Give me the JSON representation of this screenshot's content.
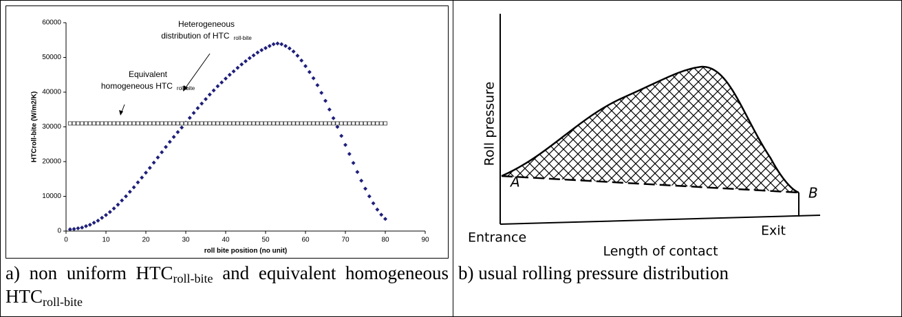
{
  "chart_data": {
    "type": "scatter",
    "y_label": "HTCroll-bite (W/m2/K)",
    "x_label": "roll bite position (no unit)",
    "annotations": [
      {
        "lines": [
          "Heterogeneous",
          "distribution of HTC"
        ],
        "sub": "roll-bite"
      },
      {
        "lines": [
          "Equivalent",
          "homogeneous HTC"
        ],
        "sub": "roll-bite"
      }
    ],
    "x": [
      1,
      2,
      3,
      4,
      5,
      6,
      7,
      8,
      9,
      10,
      11,
      12,
      13,
      14,
      15,
      16,
      17,
      18,
      19,
      20,
      21,
      22,
      23,
      24,
      25,
      26,
      27,
      28,
      29,
      30,
      31,
      32,
      33,
      34,
      35,
      36,
      37,
      38,
      39,
      40,
      41,
      42,
      43,
      44,
      45,
      46,
      47,
      48,
      49,
      50,
      51,
      52,
      53,
      54,
      55,
      56,
      57,
      58,
      59,
      60,
      61,
      62,
      63,
      64,
      65,
      66,
      67,
      68,
      69,
      70,
      71,
      72,
      73,
      74,
      75,
      76,
      77,
      78,
      79,
      80
    ],
    "series": [
      {
        "color": "#1f1f7a",
        "marker": "diamond",
        "values": [
          500,
          600,
          800,
          1000,
          1400,
          1800,
          2400,
          3000,
          3800,
          4600,
          5500,
          6500,
          7600,
          8800,
          10000,
          11300,
          12600,
          14000,
          15400,
          16800,
          18200,
          19700,
          21200,
          22700,
          24200,
          25700,
          27100,
          28500,
          29800,
          31200,
          32600,
          34000,
          35400,
          36700,
          38000,
          39300,
          40500,
          41700,
          42800,
          43900,
          45000,
          46000,
          47000,
          48000,
          48900,
          49800,
          50600,
          51400,
          52100,
          52700,
          53300,
          53800,
          54000,
          53800,
          53300,
          52600,
          51700,
          50500,
          49100,
          47500,
          45800,
          44000,
          42000,
          39800,
          37500,
          35000,
          32500,
          30000,
          27400,
          24800,
          22200,
          19600,
          17000,
          14500,
          12200,
          10000,
          8000,
          6200,
          4700,
          3500
        ]
      },
      {
        "color": "#333333",
        "marker": "square",
        "values": [
          31000,
          31000,
          31000,
          31000,
          31000,
          31000,
          31000,
          31000,
          31000,
          31000,
          31000,
          31000,
          31000,
          31000,
          31000,
          31000,
          31000,
          31000,
          31000,
          31000,
          31000,
          31000,
          31000,
          31000,
          31000,
          31000,
          31000,
          31000,
          31000,
          31000,
          31000,
          31000,
          31000,
          31000,
          31000,
          31000,
          31000,
          31000,
          31000,
          31000,
          31000,
          31000,
          31000,
          31000,
          31000,
          31000,
          31000,
          31000,
          31000,
          31000,
          31000,
          31000,
          31000,
          31000,
          31000,
          31000,
          31000,
          31000,
          31000,
          31000,
          31000,
          31000,
          31000,
          31000,
          31000,
          31000,
          31000,
          31000,
          31000,
          31000,
          31000,
          31000,
          31000,
          31000,
          31000,
          31000,
          31000,
          31000,
          31000,
          31000
        ]
      }
    ],
    "xlim": [
      0,
      90
    ],
    "xticks": [
      0,
      10,
      20,
      30,
      40,
      50,
      60,
      70,
      80,
      90
    ],
    "ylim": [
      0,
      60000
    ],
    "yticks": [
      0,
      10000,
      20000,
      30000,
      40000,
      50000,
      60000
    ],
    "grid": false
  },
  "caption_a": {
    "parts": [
      "a) non uniform HTC",
      "roll-bite",
      " and equivalent homogeneous HTC",
      "roll-bite"
    ]
  },
  "diagram": {
    "y_label": "Roll pressure",
    "x_label": "Length of contact",
    "start": "Entrance",
    "end": "Exit",
    "point_a": "A",
    "point_b": "B"
  },
  "caption_b": "b) usual rolling pressure distribution"
}
